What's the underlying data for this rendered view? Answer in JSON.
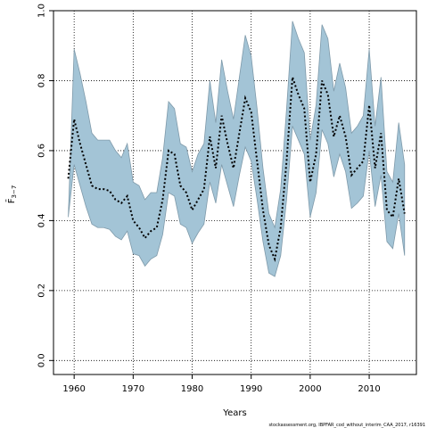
{
  "chart_data": {
    "type": "line",
    "title": "",
    "xlabel": "Years",
    "ylabel": "F̄",
    "ylabel_sub": "3−7",
    "xlim": [
      1956.5,
      2018.0
    ],
    "ylim": [
      -0.04,
      1.0
    ],
    "xticks": [
      1960,
      1970,
      1980,
      1990,
      2000,
      2010
    ],
    "yticks": [
      0.0,
      0.2,
      0.4,
      0.6,
      0.8,
      1.0
    ],
    "ytick_labels": [
      "0.0",
      "0.2",
      "0.4",
      "0.6",
      "0.8",
      "1.0"
    ],
    "grid": true,
    "colors": {
      "band": "#a3c4d6",
      "band_edge": "#7f9aaa",
      "line": "#000000"
    },
    "x": [
      1959,
      1960,
      1961,
      1962,
      1963,
      1964,
      1965,
      1966,
      1967,
      1968,
      1969,
      1970,
      1971,
      1972,
      1973,
      1974,
      1975,
      1976,
      1977,
      1978,
      1979,
      1980,
      1981,
      1982,
      1983,
      1984,
      1985,
      1986,
      1987,
      1988,
      1989,
      1990,
      1991,
      1992,
      1993,
      1994,
      1995,
      1996,
      1997,
      1998,
      1999,
      2000,
      2001,
      2002,
      2003,
      2004,
      2005,
      2006,
      2007,
      2008,
      2009,
      2010,
      2011,
      2012,
      2013,
      2014,
      2015,
      2016
    ],
    "series": [
      {
        "estimate": [
          0.52,
          0.69,
          0.62,
          0.56,
          0.5,
          0.49,
          0.49,
          0.485,
          0.46,
          0.45,
          0.47,
          0.4,
          0.38,
          0.35,
          0.37,
          0.38,
          0.46,
          0.6,
          0.59,
          0.5,
          0.48,
          0.43,
          0.46,
          0.49,
          0.64,
          0.55,
          0.7,
          0.62,
          0.55,
          0.65,
          0.75,
          0.71,
          0.57,
          0.43,
          0.33,
          0.29,
          0.38,
          0.57,
          0.81,
          0.76,
          0.72,
          0.51,
          0.59,
          0.8,
          0.76,
          0.64,
          0.7,
          0.64,
          0.53,
          0.55,
          0.57,
          0.73,
          0.55,
          0.65,
          0.43,
          0.41,
          0.52,
          0.42
        ],
        "upper": [
          0.41,
          0.89,
          0.82,
          0.74,
          0.65,
          0.63,
          0.63,
          0.63,
          0.6,
          0.58,
          0.62,
          0.51,
          0.5,
          0.46,
          0.48,
          0.48,
          0.58,
          0.74,
          0.72,
          0.62,
          0.61,
          0.54,
          0.59,
          0.62,
          0.8,
          0.68,
          0.86,
          0.77,
          0.69,
          0.81,
          0.93,
          0.87,
          0.72,
          0.55,
          0.42,
          0.38,
          0.49,
          0.72,
          0.97,
          0.92,
          0.88,
          0.63,
          0.73,
          0.96,
          0.92,
          0.77,
          0.85,
          0.78,
          0.65,
          0.67,
          0.7,
          0.89,
          0.67,
          0.81,
          0.54,
          0.51,
          0.68,
          0.56
        ],
        "lower": [
          0.41,
          0.56,
          0.5,
          0.44,
          0.39,
          0.38,
          0.38,
          0.375,
          0.355,
          0.345,
          0.37,
          0.305,
          0.3,
          0.27,
          0.29,
          0.3,
          0.36,
          0.48,
          0.47,
          0.39,
          0.38,
          0.335,
          0.365,
          0.39,
          0.51,
          0.45,
          0.56,
          0.5,
          0.44,
          0.53,
          0.61,
          0.57,
          0.46,
          0.34,
          0.25,
          0.24,
          0.3,
          0.46,
          0.67,
          0.63,
          0.59,
          0.41,
          0.48,
          0.66,
          0.62,
          0.525,
          0.59,
          0.54,
          0.435,
          0.45,
          0.47,
          0.6,
          0.44,
          0.53,
          0.34,
          0.32,
          0.42,
          0.3
        ]
      }
    ],
    "footer": "stockassessment.org, IBPFAR_cod_without_interim_CAA_2017, r16391"
  }
}
